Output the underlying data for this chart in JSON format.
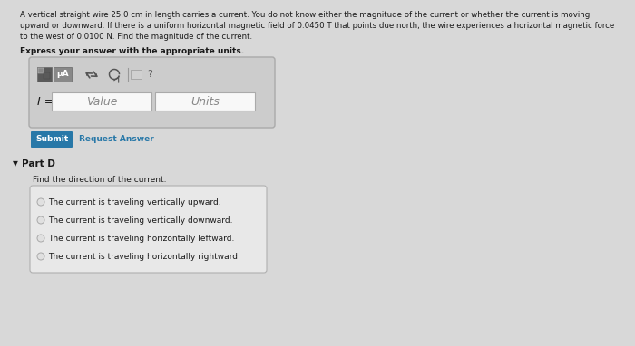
{
  "background_color": "#d8d8d8",
  "body_lines": [
    "A vertical straight wire 25.0 cm in length carries a current. You do not know either the magnitude of the current or whether the current is moving",
    "upward or downward. If there is a uniform horizontal magnetic field of 0.0450 T that points due north, the wire experiences a horizontal magnetic force",
    "to the west of 0.0100 N. Find the magnitude of the current."
  ],
  "bold_text": "Express your answer with the appropriate units.",
  "input_label": "I =",
  "input_placeholder_value": "Value",
  "input_placeholder_units": "Units",
  "submit_btn_text": "Submit",
  "submit_btn_color": "#2878a8",
  "request_answer_text": "Request Answer",
  "request_answer_color": "#2878a8",
  "part_d_label": "Part D",
  "part_d_question": "Find the direction of the current.",
  "radio_options": [
    "The current is traveling vertically upward.",
    "The current is traveling vertically downward.",
    "The current is traveling horizontally leftward.",
    "The current is traveling horizontally rightward."
  ],
  "toolbar_label": "μA",
  "outer_box_bg": "#cccccc",
  "outer_box_border": "#aaaaaa",
  "toolbar_bg": "#c8c8c8",
  "icon_dark_bg": "#5a5a5a",
  "icon_mid_bg": "#888888",
  "input_area_bg": "#d0d0d0",
  "value_box_bg": "#f8f8f8",
  "value_box_border": "#aaaaaa",
  "radio_box_bg": "#e8e8e8",
  "radio_box_border": "#b0b0b0",
  "text_color": "#1a1a1a",
  "gray_text": "#888888"
}
